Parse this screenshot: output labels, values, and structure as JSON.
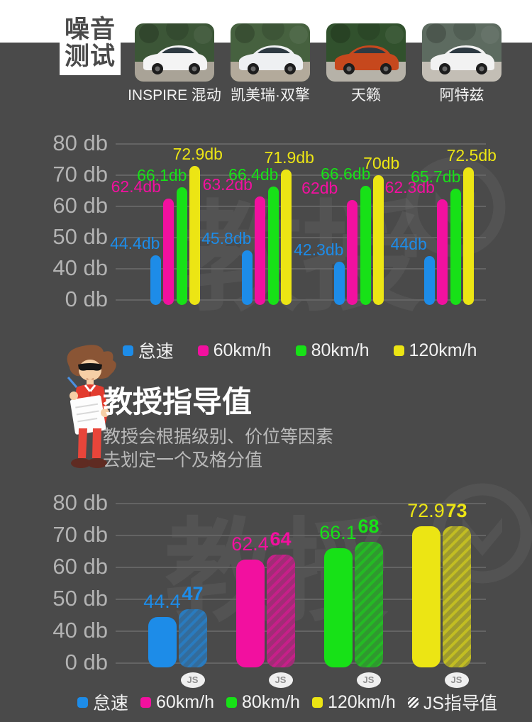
{
  "header": {
    "title_line1": "噪音",
    "title_line2": "测试",
    "cars": [
      {
        "name": "INSPIRE 混动",
        "body_color": "#f4f4f4",
        "scene_top": "#3c5637",
        "scene_ground": "#a9a397"
      },
      {
        "name": "凯美瑞·双擎",
        "body_color": "#eef0f2",
        "scene_top": "#46613f",
        "scene_ground": "#b3aa9b"
      },
      {
        "name": "天籁",
        "body_color": "#c6481d",
        "scene_top": "#31512d",
        "scene_ground": "#b6b2a8"
      },
      {
        "name": "阿特兹",
        "body_color": "#f2f2f2",
        "scene_top": "#5d6b60",
        "scene_ground": "#c3beb5"
      }
    ]
  },
  "watermark": {
    "text": "教授"
  },
  "chart_data": [
    {
      "type": "bar",
      "title": "噪音测试",
      "unit": "db",
      "categories": [
        "INSPIRE 混动",
        "凯美瑞·双擎",
        "天籁",
        "阿特兹"
      ],
      "y_ticks": [
        "80 db",
        "70 db",
        "60 db",
        "50 db",
        "40 db",
        "0 db"
      ],
      "axis_note": "broken y-axis: gridlines evenly spaced at 80/70/60/50/40 db with 0 db one step below 40",
      "legend_position": "bottom",
      "series": [
        {
          "name": "怠速",
          "color": "#1d8ce8",
          "values": [
            44.4,
            45.8,
            42.3,
            44.0
          ],
          "labels": [
            "44.4db",
            "45.8db",
            "42.3db",
            "44db"
          ]
        },
        {
          "name": "60km/h",
          "color": "#f2109f",
          "values": [
            62.4,
            63.2,
            62.0,
            62.3
          ],
          "labels": [
            "62.4db",
            "63.2db",
            "62db",
            "62.3db"
          ]
        },
        {
          "name": "80km/h",
          "color": "#17e117",
          "values": [
            66.1,
            66.4,
            66.6,
            65.7
          ],
          "labels": [
            "66.1db",
            "66.4db",
            "66.6db",
            "65.7db"
          ]
        },
        {
          "name": "120km/h",
          "color": "#ece514",
          "values": [
            72.9,
            71.9,
            70.0,
            72.5
          ],
          "labels": [
            "72.9db",
            "71.9db",
            "70db",
            "72.5db"
          ]
        }
      ]
    },
    {
      "type": "bar",
      "title": "教授指导值",
      "unit": "db",
      "categories": [
        "怠速",
        "60km/h",
        "80km/h",
        "120km/h"
      ],
      "category_colors": [
        "#1d8ce8",
        "#f2109f",
        "#17e117",
        "#ece514"
      ],
      "y_ticks": [
        "80 db",
        "70 db",
        "60 db",
        "50 db",
        "40 db",
        "0 db"
      ],
      "axis_note": "broken y-axis identical to first chart; each pair = measured solid bar + hatched JS guide bar",
      "legend_position": "bottom",
      "series": [
        {
          "name": "",
          "hatched": false,
          "values": [
            44.4,
            62.4,
            66.1,
            72.9
          ],
          "labels": [
            "44.4",
            "62.4",
            "66.1",
            "72.9"
          ]
        },
        {
          "name": "JS指导值",
          "hatched": true,
          "values": [
            47,
            64,
            68,
            73
          ],
          "labels": [
            "47",
            "64",
            "68",
            "73"
          ],
          "badge": "JS"
        }
      ],
      "legend": [
        "怠速",
        "60km/h",
        "80km/h",
        "120km/h",
        "JS指导值"
      ]
    }
  ],
  "professor_section": {
    "heading": "教授指导值",
    "desc_line1": "教授会根据级别、价位等因素",
    "desc_line2": "去划定一个及格分值"
  }
}
